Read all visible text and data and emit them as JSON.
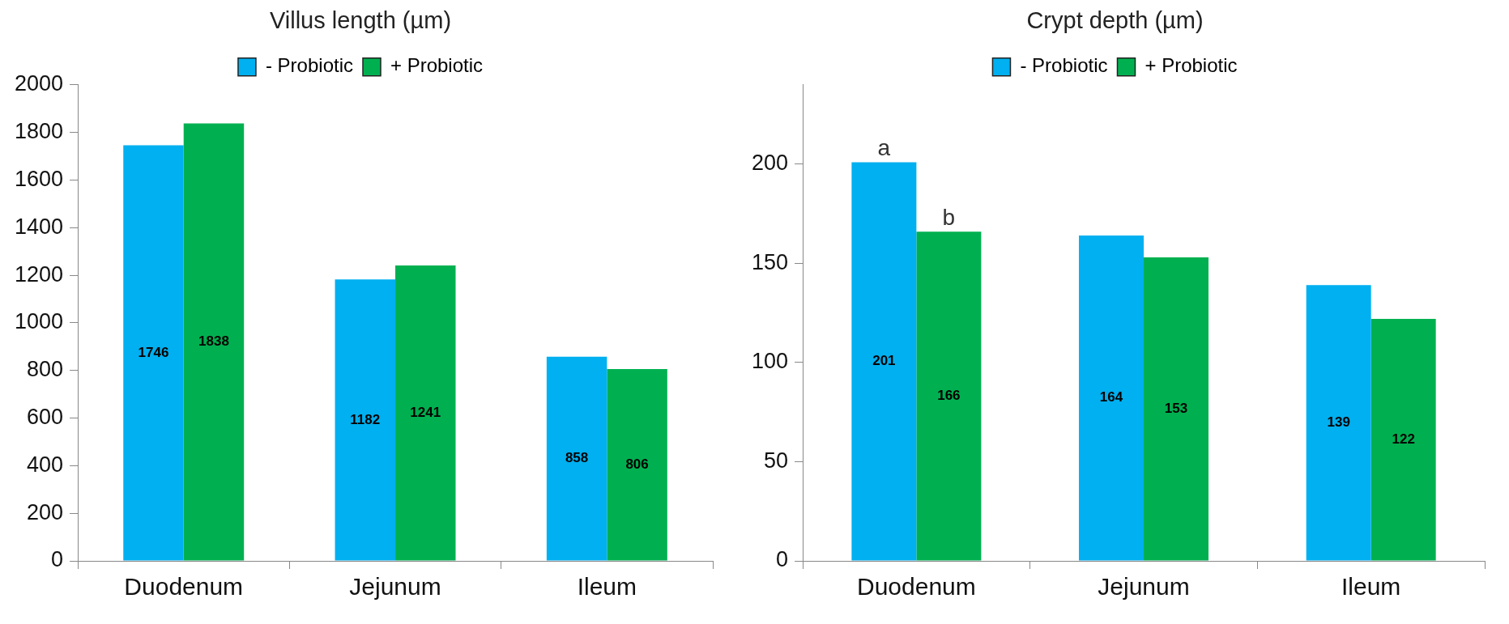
{
  "chart_data": [
    {
      "type": "bar",
      "title": "Villus length (µm)",
      "categories": [
        "Duodenum",
        "Jejunum",
        "Ileum"
      ],
      "series": [
        {
          "name": "- Probiotic",
          "color": "#00b0f0",
          "values": [
            1746,
            1182,
            858
          ]
        },
        {
          "name": "+ Probiotic",
          "color": "#00b050",
          "values": [
            1838,
            1241,
            806
          ]
        }
      ],
      "ylim": [
        0,
        2000
      ],
      "yticks": [
        0,
        200,
        400,
        600,
        800,
        1000,
        1200,
        1400,
        1600,
        1800,
        2000
      ],
      "grid": false,
      "legend": "top",
      "data_labels": true
    },
    {
      "type": "bar",
      "title": "Crypt depth (µm)",
      "categories": [
        "Duodenum",
        "Jejunum",
        "Ileum"
      ],
      "series": [
        {
          "name": "- Probiotic",
          "color": "#00b0f0",
          "values": [
            201,
            164,
            139
          ]
        },
        {
          "name": "+ Probiotic",
          "color": "#00b050",
          "values": [
            166,
            153,
            122
          ]
        }
      ],
      "ylim": [
        0,
        240
      ],
      "yticks": [
        0,
        50,
        100,
        150,
        200
      ],
      "grid": false,
      "legend": "top",
      "data_labels": true,
      "annotations": [
        {
          "text": "a",
          "x": "Duodenum",
          "y": 201
        },
        {
          "text": "b",
          "x": "Duodenum",
          "y": 166
        }
      ]
    }
  ]
}
